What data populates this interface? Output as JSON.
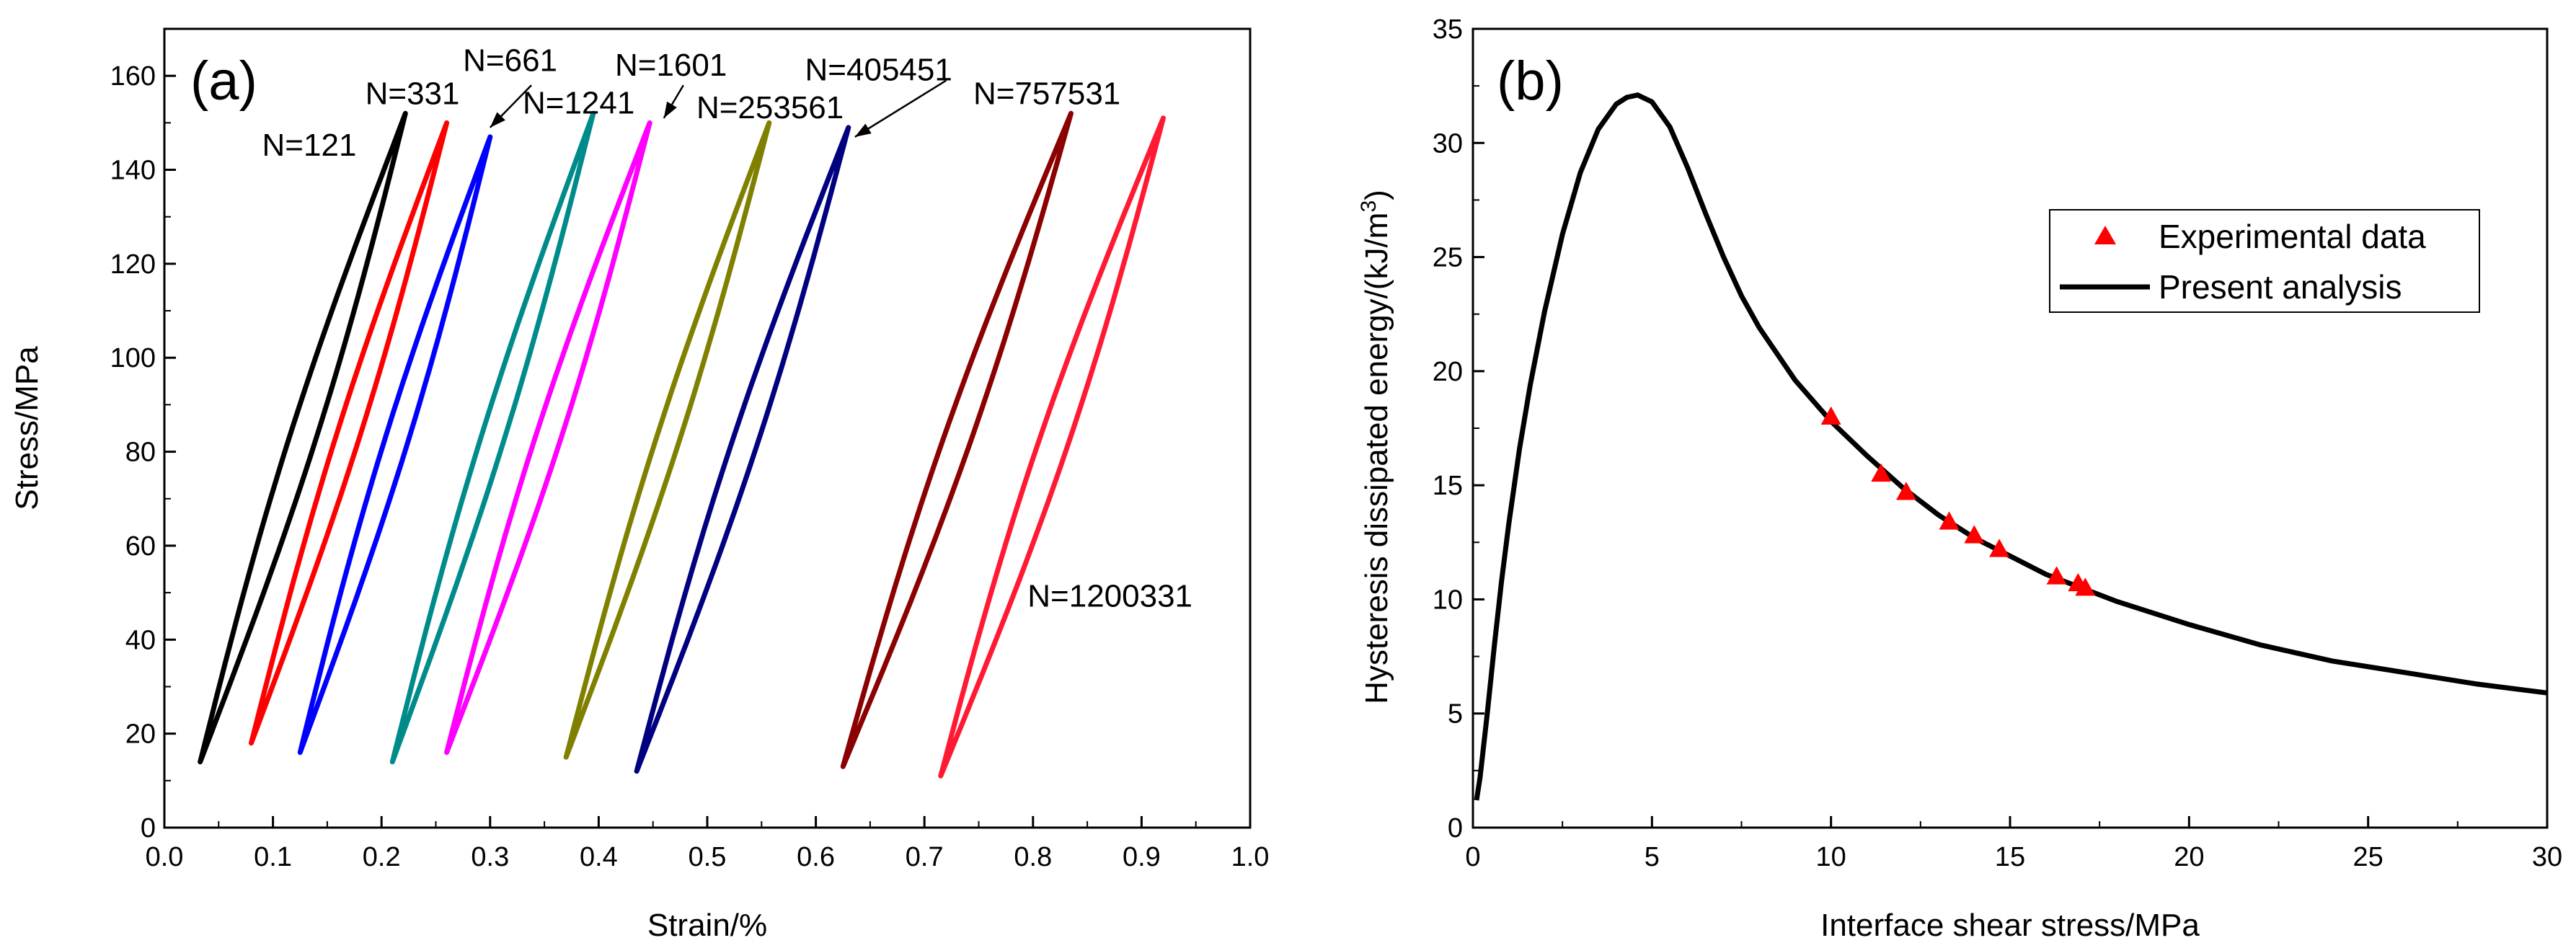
{
  "chart_data": [
    {
      "panel": "(a)",
      "type": "line",
      "xlabel": "Strain/%",
      "ylabel": "Stress/MPa",
      "xlim": [
        0.0,
        1.0
      ],
      "ylim": [
        0,
        170
      ],
      "xticks": [
        0.0,
        0.1,
        0.2,
        0.3,
        0.4,
        0.5,
        0.6,
        0.7,
        0.8,
        0.9,
        1.0
      ],
      "xtick_labels": [
        "0.0",
        "0.1",
        "0.2",
        "0.3",
        "0.4",
        "0.5",
        "0.6",
        "0.7",
        "0.8",
        "0.9",
        "1.0"
      ],
      "yticks": [
        0,
        20,
        40,
        60,
        80,
        100,
        120,
        140,
        160
      ],
      "ytick_labels": [
        "0",
        "20",
        "40",
        "60",
        "80",
        "100",
        "120",
        "140",
        "160"
      ],
      "series": [
        {
          "name": "N=121",
          "color": "#000000",
          "min_strain": 0.033,
          "min_stress": 14,
          "max_strain": 0.222,
          "max_stress": 152,
          "loop_width": 0.025
        },
        {
          "name": "N=331",
          "color": "#ff0000",
          "min_strain": 0.08,
          "min_stress": 18,
          "max_strain": 0.26,
          "max_stress": 150,
          "loop_width": 0.022
        },
        {
          "name": "N=661",
          "color": "#0000ff",
          "min_strain": 0.125,
          "min_stress": 16,
          "max_strain": 0.3,
          "max_stress": 147,
          "loop_width": 0.022
        },
        {
          "name": "N=1241",
          "color": "#008b8b",
          "min_strain": 0.21,
          "min_stress": 14,
          "max_strain": 0.395,
          "max_stress": 152,
          "loop_width": 0.022
        },
        {
          "name": "N=1601",
          "color": "#ff00ff",
          "min_strain": 0.26,
          "min_stress": 16,
          "max_strain": 0.447,
          "max_stress": 150,
          "loop_width": 0.024
        },
        {
          "name": "N=253561",
          "color": "#808000",
          "min_strain": 0.37,
          "min_stress": 15,
          "max_strain": 0.557,
          "max_stress": 150,
          "loop_width": 0.022
        },
        {
          "name": "N=405451",
          "color": "#000080",
          "min_strain": 0.435,
          "min_stress": 12,
          "max_strain": 0.63,
          "max_stress": 149,
          "loop_width": 0.024
        },
        {
          "name": "N=757531",
          "color": "#8b0000",
          "min_strain": 0.625,
          "min_stress": 13,
          "max_strain": 0.835,
          "max_stress": 152,
          "loop_width": 0.026
        },
        {
          "name": "N=1200331",
          "color": "#ff1a33",
          "min_strain": 0.715,
          "min_stress": 11,
          "max_strain": 0.92,
          "max_stress": 151,
          "loop_width": 0.028
        }
      ],
      "annotations": [
        {
          "text": "N=121",
          "x": 0.09,
          "y": 143
        },
        {
          "text": "N=331",
          "x": 0.185,
          "y": 154
        },
        {
          "text": "N=661",
          "x": 0.275,
          "y": 161
        },
        {
          "text": "N=1241",
          "x": 0.33,
          "y": 152
        },
        {
          "text": "N=1601",
          "x": 0.415,
          "y": 160
        },
        {
          "text": "N=253561",
          "x": 0.49,
          "y": 151
        },
        {
          "text": "N=405451",
          "x": 0.59,
          "y": 159
        },
        {
          "text": "N=757531",
          "x": 0.745,
          "y": 154
        },
        {
          "text": "N=1200331",
          "x": 0.795,
          "y": 47
        }
      ],
      "arrows": [
        {
          "from_x": 0.338,
          "from_y": 158,
          "to_x": 0.3,
          "to_y": 149
        },
        {
          "from_x": 0.478,
          "from_y": 158,
          "to_x": 0.46,
          "to_y": 151
        },
        {
          "from_x": 0.72,
          "from_y": 159,
          "to_x": 0.636,
          "to_y": 147
        }
      ]
    },
    {
      "panel": "(b)",
      "type": "line",
      "xlabel": "Interface shear stress/MPa",
      "ylabel": "Hysteresis dissipated energy/(kJ/m",
      "ylabel_sup": "3",
      "ylabel_end": ")",
      "xlim": [
        0,
        30
      ],
      "ylim": [
        0,
        35
      ],
      "xticks": [
        0,
        5,
        10,
        15,
        20,
        25,
        30
      ],
      "xtick_labels": [
        "0",
        "5",
        "10",
        "15",
        "20",
        "25",
        "30"
      ],
      "yticks": [
        0,
        5,
        10,
        15,
        20,
        25,
        30,
        35
      ],
      "ytick_labels": [
        "0",
        "5",
        "10",
        "15",
        "20",
        "25",
        "30",
        "35"
      ],
      "curve": {
        "name": "Present analysis",
        "color": "#000000",
        "x": [
          0.1,
          0.2,
          0.4,
          0.6,
          0.8,
          1.0,
          1.3,
          1.6,
          2.0,
          2.5,
          3.0,
          3.5,
          4.0,
          4.3,
          4.6,
          5.0,
          5.5,
          6.0,
          6.5,
          7.0,
          7.5,
          8.0,
          9.0,
          10.0,
          11.0,
          12.0,
          13.0,
          14.0,
          15.0,
          16.0,
          17.0,
          18.0,
          20.0,
          22.0,
          24.0,
          26.0,
          28.0,
          30.0
        ],
        "y": [
          1.2,
          2.2,
          5.0,
          8.0,
          10.8,
          13.3,
          16.6,
          19.4,
          22.6,
          26.0,
          28.7,
          30.6,
          31.7,
          32.0,
          32.1,
          31.8,
          30.7,
          28.9,
          26.9,
          25.0,
          23.3,
          21.9,
          19.6,
          17.8,
          16.3,
          14.9,
          13.7,
          12.7,
          11.9,
          11.1,
          10.5,
          9.9,
          8.9,
          8.0,
          7.3,
          6.8,
          6.3,
          5.9
        ]
      },
      "points": {
        "name": "Experimental data",
        "color": "#ff0000",
        "x": [
          10.0,
          11.4,
          12.1,
          13.3,
          14.0,
          14.7,
          16.3,
          16.9,
          17.1
        ],
        "y": [
          18.0,
          15.5,
          14.7,
          13.4,
          12.8,
          12.2,
          11.0,
          10.7,
          10.5
        ]
      },
      "legend": [
        "Experimental data",
        "Present analysis"
      ],
      "legend_placement": "upper-right"
    }
  ]
}
